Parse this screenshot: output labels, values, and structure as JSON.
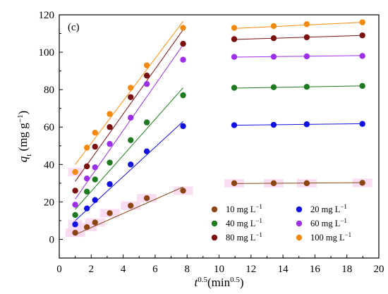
{
  "chart_data": {
    "type": "scatter",
    "panel_label": "(c)",
    "xlabel": {
      "base": "t",
      "sup": "0.5",
      "unit": "(min",
      "unit_sup": "0.5",
      "close": ")"
    },
    "ylabel": {
      "base": "q",
      "sub": "t",
      "unit": " (mg g",
      "unit_sup": "−1",
      "close": ")"
    },
    "xlim": [
      0,
      20
    ],
    "ylim": [
      -10,
      120
    ],
    "xticks": [
      "0",
      "2",
      "4",
      "6",
      "8",
      "10",
      "12",
      "14",
      "16",
      "18",
      "20"
    ],
    "yticks": [
      "0",
      "20",
      "40",
      "60",
      "80",
      "100",
      "120"
    ],
    "legend_position": "bottom-right",
    "series": [
      {
        "name": "10 mg L",
        "name_sup": "−1",
        "color": "#8B4513",
        "x": [
          1.0,
          1.73,
          2.24,
          3.16,
          4.47,
          5.48,
          7.75,
          10.95,
          13.42,
          15.49,
          18.97
        ],
        "y": [
          3.5,
          6.5,
          9.0,
          14.0,
          18.0,
          22.0,
          26.0,
          30.0,
          30.0,
          30.0,
          30.2
        ],
        "fit1": [
          [
            1.0,
            2.5
          ],
          [
            7.75,
            28.0
          ]
        ],
        "fit2": [
          [
            10.95,
            29.8
          ],
          [
            18.97,
            30.3
          ]
        ]
      },
      {
        "name": "20 mg L",
        "name_sup": "−1",
        "color": "#1010E0",
        "x": [
          1.0,
          1.73,
          2.24,
          3.16,
          4.47,
          5.48,
          7.75,
          10.95,
          13.42,
          15.49,
          18.97
        ],
        "y": [
          8.0,
          16.5,
          21.0,
          29.5,
          40.0,
          47.0,
          60.5,
          61.0,
          61.2,
          61.5,
          61.7
        ],
        "fit1": [
          [
            1.0,
            10.0
          ],
          [
            7.75,
            63.0
          ]
        ],
        "fit2": [
          [
            10.95,
            61.0
          ],
          [
            18.97,
            61.8
          ]
        ]
      },
      {
        "name": "40 mg L",
        "name_sup": "−1",
        "color": "#1F7A1F",
        "x": [
          1.0,
          1.73,
          2.24,
          3.16,
          4.47,
          5.48,
          7.75,
          10.95,
          13.42,
          15.49,
          18.97
        ],
        "y": [
          13.0,
          25.5,
          32.0,
          41.0,
          53.0,
          62.5,
          77.0,
          81.0,
          81.3,
          81.5,
          82.0
        ],
        "fit1": [
          [
            1.0,
            16.0
          ],
          [
            7.75,
            81.0
          ]
        ],
        "fit2": [
          [
            10.95,
            80.8
          ],
          [
            18.97,
            82.0
          ]
        ]
      },
      {
        "name": "60 mg L",
        "name_sup": "−1",
        "color": "#9B30E8",
        "x": [
          1.0,
          1.73,
          2.24,
          3.16,
          4.47,
          5.48,
          7.75,
          10.95,
          13.42,
          15.49,
          18.97
        ],
        "y": [
          18.5,
          32.5,
          38.5,
          51.0,
          65.0,
          83.0,
          96.0,
          97.5,
          97.6,
          97.8,
          98.0
        ],
        "fit1": [
          [
            1.0,
            21.5
          ],
          [
            7.75,
            104.0
          ]
        ],
        "fit2": [
          [
            10.95,
            97.4
          ],
          [
            18.97,
            98.2
          ]
        ]
      },
      {
        "name": "80 mg L",
        "name_sup": "−1",
        "color": "#7A1010",
        "x": [
          1.0,
          1.73,
          2.24,
          3.16,
          4.47,
          5.48,
          7.75,
          10.95,
          13.42,
          15.49,
          18.97
        ],
        "y": [
          26.0,
          39.0,
          49.5,
          60.0,
          76.0,
          87.5,
          104.5,
          107.0,
          107.5,
          108.0,
          109.0
        ],
        "fit1": [
          [
            1.0,
            31.0
          ],
          [
            7.75,
            112.0
          ]
        ],
        "fit2": [
          [
            10.95,
            106.8
          ],
          [
            18.97,
            109.0
          ]
        ]
      },
      {
        "name": "100 mg L",
        "name_sup": "−1",
        "color": "#F28A10",
        "x": [
          1.0,
          1.73,
          2.24,
          3.16,
          4.47,
          5.48,
          7.75,
          10.95,
          13.42,
          15.49,
          18.97
        ],
        "y": [
          36.0,
          49.0,
          57.0,
          67.0,
          81.0,
          93.0,
          113.0,
          113.0,
          114.0,
          115.0,
          116.0
        ],
        "fit1": [
          [
            1.0,
            40.0
          ],
          [
            7.75,
            116.5
          ]
        ],
        "fit2": [
          [
            10.95,
            112.7
          ],
          [
            18.97,
            116.0
          ]
        ]
      }
    ]
  }
}
